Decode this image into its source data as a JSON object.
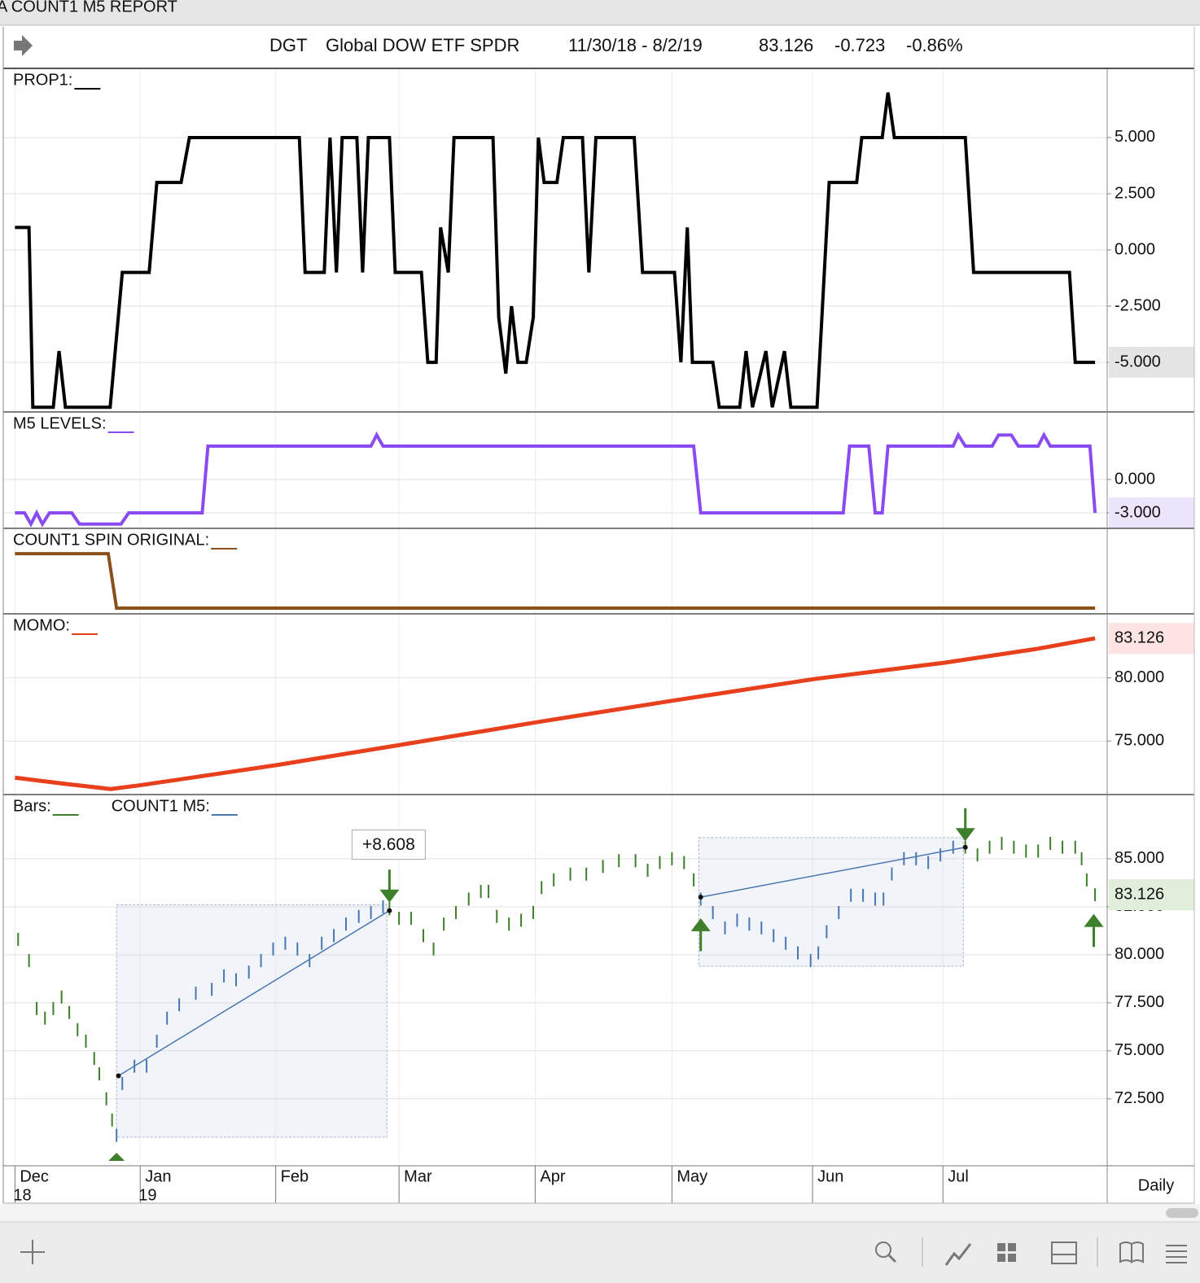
{
  "window_title": "A COUNT1 M5 REPORT",
  "header": {
    "symbol": "DGT",
    "name": "Global DOW ETF SPDR",
    "date_range": "11/30/18 - 8/2/19",
    "last": "83.126",
    "change": "-0.723",
    "change_pct": "-0.86%"
  },
  "time_axis": {
    "xlim": [
      -1.7,
      170.9
    ],
    "xticks": [
      {
        "value": 0,
        "label": "Dec"
      },
      {
        "value": 19.6,
        "label": "Jan"
      },
      {
        "value": 40.8,
        "label": "Feb"
      },
      {
        "value": 60.1,
        "label": "Mar"
      },
      {
        "value": 81.4,
        "label": "Apr"
      },
      {
        "value": 102.8,
        "label": "May"
      },
      {
        "value": 124.8,
        "label": "Jun"
      },
      {
        "value": 145.2,
        "label": "Jul"
      }
    ],
    "year_labels": [
      {
        "value": 0,
        "label": "18"
      },
      {
        "value": 19.6,
        "label": "19"
      }
    ],
    "period": "Daily"
  },
  "chart_data": [
    {
      "type": "line",
      "ylim": [
        -7.17,
        8.04
      ],
      "grid": true,
      "yticks": [
        {
          "value": 5,
          "label": "5.000"
        },
        {
          "value": 2.5,
          "label": "2.500"
        },
        {
          "value": 0,
          "label": "0.000"
        },
        {
          "value": -2.5,
          "label": "-2.500"
        },
        {
          "value": -5,
          "label": "-5.000"
        }
      ],
      "highlight": {
        "fill": "#e4e4e4",
        "text": "#111111"
      },
      "series": [
        {
          "name": "PROP1:",
          "color": "#000000",
          "x": [
            0,
            2.2,
            2.8,
            6.0,
            6.9,
            7.9,
            14.9,
            16.8,
            21.0,
            22.2,
            26.0,
            27.3,
            44.5,
            45.4,
            48.4,
            49.3,
            50.3,
            51.2,
            53.5,
            54.4,
            55.3,
            58.6,
            59.5,
            63.6,
            64.6,
            65.9,
            66.6,
            67.8,
            68.7,
            74.8,
            75.7,
            76.8,
            77.7,
            78.7,
            80.0,
            81.1,
            81.9,
            82.8,
            84.8,
            85.8,
            88.8,
            89.8,
            90.9,
            96.9,
            98.2,
            103.2,
            104.2,
            105.2,
            106.0,
            109.2,
            110.2,
            113.4,
            114.4,
            115.4,
            117.5,
            118.5,
            120.4,
            121.4,
            125.5,
            127.4,
            131.7,
            132.5,
            135.7,
            136.6,
            137.6,
            148.7,
            150.0,
            165.0,
            165.9,
            169.0
          ],
          "values": [
            1,
            1,
            -7,
            -7,
            -4.5,
            -7,
            -7,
            -1,
            -1,
            3,
            3,
            5,
            5,
            -1,
            -1,
            5,
            -1,
            5,
            5,
            -1,
            5,
            5,
            -1,
            -1,
            -5,
            -5,
            1,
            -1,
            5,
            5,
            -3,
            -5.5,
            -2.5,
            -5,
            -5,
            -3,
            5,
            3,
            3,
            5,
            5,
            -1,
            5,
            5,
            -1,
            -1,
            -5,
            1,
            -5,
            -5,
            -7,
            -7,
            -4.5,
            -7,
            -4.5,
            -7,
            -4.5,
            -7,
            -7,
            3,
            3,
            5,
            5,
            7,
            5,
            5,
            -1,
            -1,
            -5,
            -5
          ]
        }
      ]
    },
    {
      "type": "line",
      "ylim": [
        -4.46,
        6
      ],
      "grid": true,
      "yticks": [
        {
          "value": 0,
          "label": "0.000"
        },
        {
          "value": -3,
          "label": "-3.000"
        }
      ],
      "highlight": {
        "fill": "#ece4fb",
        "text": "#6a3fc0"
      },
      "series": [
        {
          "name": "M5 LEVELS:",
          "color": "#8a4cf0",
          "x": [
            0,
            1.5,
            2.5,
            3.4,
            4.3,
            5.4,
            8.9,
            10.1,
            16.6,
            17.8,
            29.3,
            30.2,
            55.7,
            56.6,
            57.6,
            106.2,
            107.3,
            129.6,
            130.6,
            133.6,
            134.6,
            135.7,
            136.6,
            146.8,
            147.6,
            148.7,
            152.9,
            153.9,
            155.9,
            157.0,
            160.1,
            161.0,
            162.0,
            168.2,
            169.0
          ],
          "values": [
            -3,
            -3,
            -4,
            -3,
            -4,
            -3,
            -3,
            -4,
            -4,
            -3,
            -3,
            3,
            3,
            4,
            3,
            3,
            -3,
            -3,
            3,
            3,
            -3,
            -3,
            3,
            3,
            4,
            3,
            3,
            4,
            4,
            3,
            3,
            4,
            3,
            3,
            -3
          ]
        }
      ]
    },
    {
      "type": "line",
      "ylim": [
        -0.12,
        1.45
      ],
      "grid": false,
      "yticks": [],
      "series": [
        {
          "name": "COUNT1 SPIN ORIGINAL:",
          "color": "#8b4f1a",
          "x": [
            0,
            14.6,
            15.9,
            169
          ],
          "values": [
            1,
            1,
            0,
            0
          ]
        }
      ]
    },
    {
      "type": "line",
      "ylim": [
        70.7,
        85.0
      ],
      "grid": true,
      "yticks": [
        {
          "value": 80,
          "label": "80.000"
        },
        {
          "value": 75,
          "label": "75.000"
        }
      ],
      "highlight": {
        "fill": "#fde4e2",
        "text": "#b5321a"
      },
      "series": [
        {
          "name": "MOMO:",
          "color": "#e8401c",
          "x": [
            0,
            8,
            15,
            19.6,
            41,
            60.4,
            81.8,
            103,
            125,
            145.5,
            160,
            169
          ],
          "values": [
            72.1,
            71.6,
            71.2,
            71.5,
            73.1,
            74.7,
            76.5,
            78.2,
            79.9,
            81.2,
            82.3,
            83.126
          ]
        }
      ]
    },
    {
      "type": "price",
      "ylim": [
        69.1,
        88.3
      ],
      "grid": true,
      "yticks": [
        {
          "value": 85,
          "label": "85.000"
        },
        {
          "value": 82.5,
          "label": "82.500"
        },
        {
          "value": 80,
          "label": "80.000"
        },
        {
          "value": 77.5,
          "label": "77.500"
        },
        {
          "value": 75,
          "label": "75.000"
        },
        {
          "value": 72.5,
          "label": "72.500"
        }
      ],
      "highlight": {
        "fill": "#e2eedc",
        "text": "#2f6b22"
      },
      "series": [
        {
          "name": "Bars:",
          "color": "#3d7f2b",
          "x": [
            0.5,
            2.2,
            3.4,
            4.7,
            6.0,
            7.3,
            8.5,
            9.8,
            11.1,
            12.4,
            13.2,
            14.3,
            15.2,
            15.9,
            16.8,
            18.7,
            20.6,
            22.2,
            23.8,
            25.7,
            28.3,
            30.8,
            32.7,
            34.6,
            36.6,
            38.5,
            40.4,
            42.3,
            44.2,
            46.1,
            48.0,
            49.9,
            51.8,
            53.8,
            55.7,
            57.6,
            58.6,
            60.1,
            62.0,
            63.9,
            65.5,
            67.1,
            69.0,
            71.0,
            72.9,
            74.1,
            75.4,
            77.3,
            79.2,
            81.1,
            82.4,
            84.3,
            86.9,
            89.4,
            92.0,
            94.5,
            97.1,
            99.0,
            100.9,
            102.8,
            104.7,
            106.2,
            107.3,
            109.2,
            111.1,
            113.0,
            114.9,
            116.8,
            118.7,
            120.6,
            122.5,
            124.5,
            125.7,
            127.0,
            128.9,
            130.8,
            132.7,
            134.6,
            135.9,
            137.2,
            139.1,
            141.0,
            142.9,
            144.8,
            146.8,
            148.7,
            150.6,
            152.5,
            154.4,
            156.3,
            158.2,
            160.1,
            162.0,
            163.9,
            165.9,
            166.9,
            167.7,
            169.0
          ],
          "values": [
            80.8,
            79.7,
            77.2,
            76.7,
            77.2,
            77.8,
            77.0,
            76.1,
            75.5,
            74.6,
            73.8,
            72.5,
            71.4,
            70.6,
            73.3,
            74.2,
            74.2,
            75.5,
            76.7,
            77.4,
            78.0,
            78.2,
            78.9,
            78.7,
            79.1,
            79.7,
            80.3,
            80.6,
            80.3,
            79.7,
            80.6,
            81.0,
            81.6,
            82.0,
            82.2,
            82.5,
            82.4,
            81.9,
            81.9,
            81.0,
            80.3,
            81.6,
            82.2,
            82.9,
            83.3,
            83.3,
            82.0,
            81.6,
            81.8,
            82.2,
            83.5,
            83.9,
            84.2,
            84.2,
            84.6,
            84.9,
            84.9,
            84.4,
            84.8,
            85.0,
            84.8,
            83.9,
            82.9,
            82.2,
            81.4,
            81.8,
            81.6,
            81.4,
            81.0,
            80.6,
            80.1,
            79.7,
            80.1,
            81.2,
            82.2,
            83.1,
            83.1,
            82.9,
            82.9,
            84.2,
            85.0,
            85.0,
            84.8,
            85.2,
            85.6,
            85.6,
            85.2,
            85.6,
            85.8,
            85.6,
            85.4,
            85.4,
            85.8,
            85.6,
            85.6,
            85.0,
            83.9,
            83.126
          ]
        },
        {
          "name": "COUNT1 M5:",
          "color": "#4a77b0",
          "regions": [
            {
              "x": [
                15.9,
                58.2
              ],
              "y": [
                70.5,
                82.6
              ]
            },
            {
              "x": [
                107,
                148.4
              ],
              "y": [
                79.4,
                86.1
              ]
            }
          ],
          "trend_lines": [
            {
              "x": [
                16.2,
                58.6
              ],
              "y": [
                73.7,
                82.3
              ]
            },
            {
              "x": [
                107.3,
                148.7
              ],
              "y": [
                83.0,
                85.6
              ]
            }
          ]
        }
      ],
      "annotation": {
        "text": "+8.608",
        "x": 58.6,
        "y": 82.3
      },
      "signals_down": [
        58.6,
        148.7
      ],
      "signals_up": [
        107.3,
        168.8
      ],
      "markers_up": [
        15.9
      ]
    }
  ]
}
